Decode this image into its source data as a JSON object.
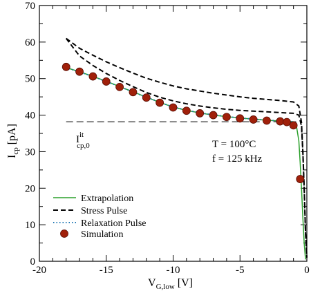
{
  "chart_data": {
    "type": "line",
    "xlabel": {
      "main": "V",
      "sub": "G,low",
      "unit": " [V]"
    },
    "ylabel": {
      "main": "I",
      "sub": "cp",
      "unit": " [pA]"
    },
    "xlim": [
      -20,
      0
    ],
    "ylim": [
      0,
      70
    ],
    "xticks": [
      -20,
      -15,
      -10,
      -5,
      0
    ],
    "yticks": [
      0,
      10,
      20,
      30,
      40,
      50,
      60,
      70
    ],
    "xtick_labels": [
      "-20",
      "-15",
      "-10",
      "-5",
      "0"
    ],
    "ytick_labels": [
      "0",
      "10",
      "20",
      "30",
      "40",
      "50",
      "60",
      "70"
    ],
    "grid": false,
    "legend_position": "bottom-left",
    "legend": [
      "Extrapolation",
      "Stress Pulse",
      "Relaxation Pulse",
      "Simulation"
    ],
    "colors": {
      "extrapolation": "#2ca02c",
      "stress": "#000000",
      "relaxation": "#1f77b4",
      "simulation": "#a0200a",
      "simulation_edge": "#5a0f05"
    },
    "annotations": {
      "conditions_T": "T = 100°C",
      "conditions_f": "f = 125 kHz",
      "icp_main": "I",
      "icp_sup": "it",
      "icp_sub": "cp,0"
    },
    "reference_level": {
      "y": 38.2,
      "x_range": [
        -18,
        -0.8
      ]
    },
    "series": [
      {
        "name": "Extrapolation",
        "style": "solid",
        "x": [
          -18,
          -17,
          -16,
          -15,
          -14,
          -13,
          -12,
          -11,
          -10,
          -9,
          -8,
          -7,
          -6,
          -5,
          -4,
          -3,
          -2,
          -1,
          -0.8,
          -0.6,
          -0.5,
          -0.4,
          -0.3,
          -0.2,
          -0.1
        ],
        "y": [
          53.0,
          51.9,
          50.6,
          49.3,
          47.8,
          46.4,
          44.9,
          43.5,
          42.2,
          41.3,
          40.6,
          40.0,
          39.6,
          39.2,
          38.9,
          38.6,
          38.4,
          38.2,
          37.5,
          33,
          27,
          20,
          12,
          5,
          0.5
        ]
      },
      {
        "name": "Stress Pulse",
        "style": "dashed",
        "x": [
          -18,
          -17,
          -16,
          -15,
          -14,
          -13,
          -12,
          -11,
          -10,
          -9,
          -8,
          -7,
          -6,
          -5,
          -4,
          -3,
          -2,
          -1,
          -0.6,
          -0.4,
          -0.3,
          -0.2,
          -0.1,
          0
        ],
        "y": [
          61.0,
          58.3,
          56.4,
          54.6,
          53.0,
          51.5,
          50.1,
          49.0,
          48.0,
          47.2,
          46.6,
          46.0,
          45.5,
          45.0,
          44.6,
          44.3,
          44.0,
          43.6,
          42.5,
          38,
          30,
          20,
          8,
          1
        ]
      },
      {
        "name": "Stress Pulse",
        "style": "dashed",
        "x": [
          -18,
          -17,
          -16,
          -15,
          -14,
          -13,
          -12,
          -11,
          -10,
          -9,
          -8,
          -7,
          -6,
          -5,
          -4,
          -3,
          -2,
          -1,
          -0.6,
          -0.4,
          -0.3,
          -0.2,
          -0.1,
          0
        ],
        "y": [
          61.0,
          56.2,
          53.6,
          51.4,
          49.5,
          47.8,
          46.2,
          44.9,
          43.9,
          43.1,
          42.5,
          42.0,
          41.6,
          41.3,
          41.1,
          40.9,
          40.7,
          40.5,
          40.0,
          37,
          30,
          20,
          8,
          1
        ]
      },
      {
        "name": "Relaxation Pulse",
        "style": "dotted",
        "x": [
          -18,
          -16,
          -14,
          -12,
          -10,
          -8,
          -6,
          -4,
          -2,
          -1,
          -0.8
        ],
        "y": [
          53.0,
          50.6,
          47.8,
          44.9,
          42.2,
          40.6,
          39.6,
          38.9,
          38.4,
          38.2,
          37.5
        ]
      },
      {
        "name": "Simulation",
        "style": "markers",
        "x": [
          -18,
          -17,
          -16,
          -15,
          -14,
          -13,
          -12,
          -11,
          -10,
          -9,
          -8,
          -7,
          -6,
          -5,
          -4,
          -3,
          -2,
          -1.5,
          -1,
          -0.5
        ],
        "y": [
          53.2,
          51.9,
          50.6,
          49.2,
          47.7,
          46.3,
          44.8,
          43.4,
          42.1,
          41.2,
          40.5,
          40.0,
          39.5,
          39.1,
          38.8,
          38.5,
          38.3,
          38.1,
          37.2,
          22.5
        ]
      }
    ]
  }
}
